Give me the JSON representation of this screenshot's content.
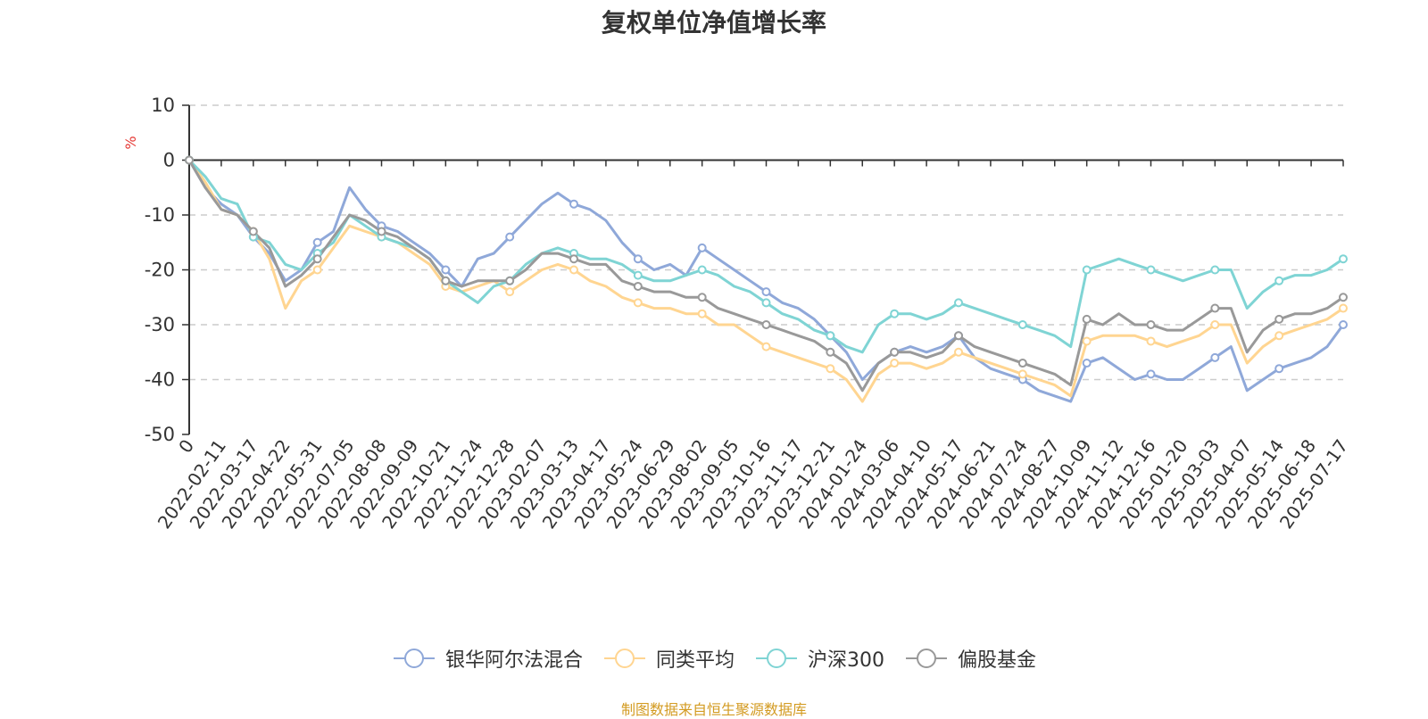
{
  "chart_data": {
    "type": "line",
    "title": "复权单位净值增长率",
    "ylabel": "%",
    "ylim": [
      -50,
      10
    ],
    "yticks": [
      10,
      0,
      -10,
      -20,
      -30,
      -40,
      -50
    ],
    "grid": true,
    "legend_position": "bottom",
    "x_tick_labels": [
      "0",
      "2022-02-11",
      "2022-03-17",
      "2022-04-22",
      "2022-05-31",
      "2022-07-05",
      "2022-08-08",
      "2022-09-09",
      "2022-10-21",
      "2022-11-24",
      "2022-12-28",
      "2023-02-07",
      "2023-03-13",
      "2023-04-17",
      "2023-05-24",
      "2023-06-29",
      "2023-08-02",
      "2023-09-05",
      "2023-10-16",
      "2023-11-17",
      "2023-12-21",
      "2024-01-24",
      "2024-03-06",
      "2024-04-10",
      "2024-05-17",
      "2024-06-21",
      "2024-07-24",
      "2024-08-27",
      "2024-10-09",
      "2024-11-12",
      "2024-12-16",
      "2025-01-20",
      "2025-03-03",
      "2025-04-07",
      "2025-05-14",
      "2025-06-18",
      "2025-07-17"
    ],
    "x": [
      "0",
      "2022-01-20",
      "2022-02-11",
      "2022-02-28",
      "2022-03-17",
      "2022-04-08",
      "2022-04-22",
      "2022-05-11",
      "2022-05-31",
      "2022-06-20",
      "2022-07-05",
      "2022-07-22",
      "2022-08-08",
      "2022-08-24",
      "2022-09-09",
      "2022-09-30",
      "2022-10-21",
      "2022-11-07",
      "2022-11-24",
      "2022-12-12",
      "2022-12-28",
      "2023-01-13",
      "2023-02-07",
      "2023-02-23",
      "2023-03-13",
      "2023-03-29",
      "2023-04-17",
      "2023-05-06",
      "2023-05-24",
      "2023-06-09",
      "2023-06-29",
      "2023-07-17",
      "2023-08-02",
      "2023-08-18",
      "2023-09-05",
      "2023-09-21",
      "2023-10-16",
      "2023-11-01",
      "2023-11-17",
      "2023-12-05",
      "2023-12-21",
      "2024-01-08",
      "2024-01-24",
      "2024-02-08",
      "2024-03-06",
      "2024-03-22",
      "2024-04-10",
      "2024-04-26",
      "2024-05-17",
      "2024-06-04",
      "2024-06-21",
      "2024-07-09",
      "2024-07-24",
      "2024-08-09",
      "2024-08-27",
      "2024-09-13",
      "2024-10-09",
      "2024-10-25",
      "2024-11-12",
      "2024-11-28",
      "2024-12-16",
      "2025-01-03",
      "2025-01-20",
      "2025-02-12",
      "2025-03-03",
      "2025-03-19",
      "2025-04-07",
      "2025-04-24",
      "2025-05-14",
      "2025-05-30",
      "2025-06-18",
      "2025-07-03",
      "2025-07-17"
    ],
    "series": [
      {
        "name": "银华阿尔法混合",
        "color": "#8fa8d9",
        "values": [
          0,
          -5,
          -8,
          -10,
          -14,
          -17,
          -22,
          -20,
          -15,
          -13,
          -5,
          -9,
          -12,
          -13,
          -15,
          -17,
          -20,
          -23,
          -18,
          -17,
          -14,
          -11,
          -8,
          -6,
          -8,
          -9,
          -11,
          -15,
          -18,
          -20,
          -19,
          -21,
          -16,
          -18,
          -20,
          -22,
          -24,
          -26,
          -27,
          -29,
          -32,
          -35,
          -40,
          -37,
          -35,
          -34,
          -35,
          -34,
          -32,
          -36,
          -38,
          -39,
          -40,
          -42,
          -43,
          -44,
          -37,
          -36,
          -38,
          -40,
          -39,
          -40,
          -40,
          -38,
          -36,
          -34,
          -42,
          -40,
          -38,
          -37,
          -36,
          -34,
          -30
        ]
      },
      {
        "name": "同类平均",
        "color": "#ffd591",
        "values": [
          0,
          -4,
          -9,
          -10,
          -13,
          -18,
          -27,
          -22,
          -20,
          -16,
          -12,
          -13,
          -14,
          -15,
          -17,
          -19,
          -23,
          -24,
          -23,
          -22,
          -24,
          -22,
          -20,
          -19,
          -20,
          -22,
          -23,
          -25,
          -26,
          -27,
          -27,
          -28,
          -28,
          -30,
          -30,
          -32,
          -34,
          -35,
          -36,
          -37,
          -38,
          -40,
          -44,
          -39,
          -37,
          -37,
          -38,
          -37,
          -35,
          -36,
          -37,
          -38,
          -39,
          -40,
          -41,
          -43,
          -33,
          -32,
          -32,
          -32,
          -33,
          -34,
          -33,
          -32,
          -30,
          -30,
          -37,
          -34,
          -32,
          -31,
          -30,
          -29,
          -27
        ]
      },
      {
        "name": "沪深300",
        "color": "#7fd4d4",
        "values": [
          0,
          -3,
          -7,
          -8,
          -14,
          -15,
          -19,
          -20,
          -17,
          -15,
          -10,
          -12,
          -14,
          -15,
          -16,
          -18,
          -22,
          -24,
          -26,
          -23,
          -22,
          -19,
          -17,
          -16,
          -17,
          -18,
          -18,
          -19,
          -21,
          -22,
          -22,
          -21,
          -20,
          -21,
          -23,
          -24,
          -26,
          -28,
          -29,
          -31,
          -32,
          -34,
          -35,
          -30,
          -28,
          -28,
          -29,
          -28,
          -26,
          -27,
          -28,
          -29,
          -30,
          -31,
          -32,
          -34,
          -20,
          -19,
          -18,
          -19,
          -20,
          -21,
          -22,
          -21,
          -20,
          -20,
          -27,
          -24,
          -22,
          -21,
          -21,
          -20,
          -18
        ]
      },
      {
        "name": "偏股基金",
        "color": "#999999",
        "values": [
          0,
          -5,
          -9,
          -10,
          -13,
          -16,
          -23,
          -21,
          -18,
          -14,
          -10,
          -11,
          -13,
          -14,
          -16,
          -18,
          -22,
          -23,
          -22,
          -22,
          -22,
          -20,
          -17,
          -17,
          -18,
          -19,
          -19,
          -22,
          -23,
          -24,
          -24,
          -25,
          -25,
          -27,
          -28,
          -29,
          -30,
          -31,
          -32,
          -33,
          -35,
          -37,
          -42,
          -37,
          -35,
          -35,
          -36,
          -35,
          -32,
          -34,
          -35,
          -36,
          -37,
          -38,
          -39,
          -41,
          -29,
          -30,
          -28,
          -30,
          -30,
          -31,
          -31,
          -29,
          -27,
          -27,
          -35,
          -31,
          -29,
          -28,
          -28,
          -27,
          -25
        ]
      }
    ]
  },
  "legend": {
    "items": [
      {
        "label": "银华阿尔法混合"
      },
      {
        "label": "同类平均"
      },
      {
        "label": "沪深300"
      },
      {
        "label": "偏股基金"
      }
    ]
  },
  "source_note": "制图数据来自恒生聚源数据库"
}
